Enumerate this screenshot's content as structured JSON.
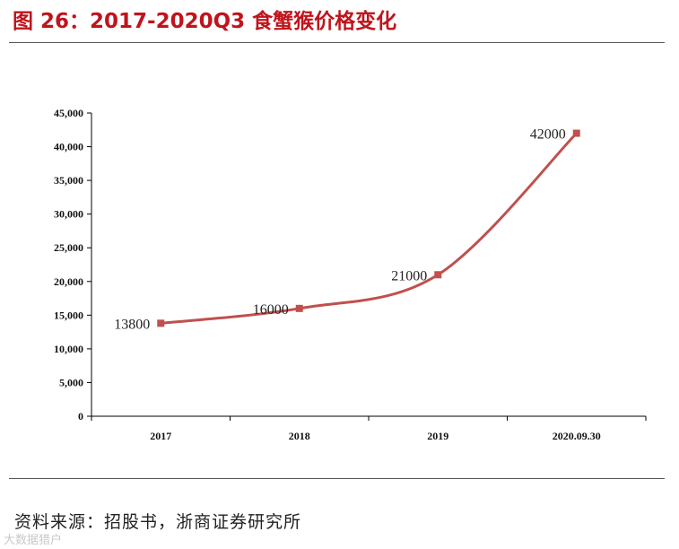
{
  "figure": {
    "title": "图 26：2017-2020Q3 食蟹猴价格变化",
    "source": "资料来源：招股书，浙商证券研究所",
    "watermark": "大数据猎户"
  },
  "colors": {
    "title": "#c0141c",
    "series": "#c0504d",
    "marker": "#c0504d",
    "axis": "#000000"
  },
  "chart_data": {
    "type": "line",
    "title": "",
    "xlabel": "",
    "ylabel": "",
    "categories": [
      "2017",
      "2018",
      "2019",
      "2020.09.30"
    ],
    "series": [
      {
        "values": [
          13800,
          16000,
          21000,
          42000
        ],
        "labels": [
          "13800",
          "16000",
          "21000",
          "42000"
        ],
        "smooth": true,
        "marker": "square"
      }
    ],
    "ylim": [
      0,
      45000
    ],
    "yticks": [
      0,
      5000,
      10000,
      15000,
      20000,
      25000,
      30000,
      35000,
      40000,
      45000
    ],
    "ytick_labels": [
      "0",
      "5,000",
      "10,000",
      "15,000",
      "20,000",
      "25,000",
      "30,000",
      "35,000",
      "40,000",
      "45,000"
    ],
    "grid": false,
    "legend": "none"
  }
}
